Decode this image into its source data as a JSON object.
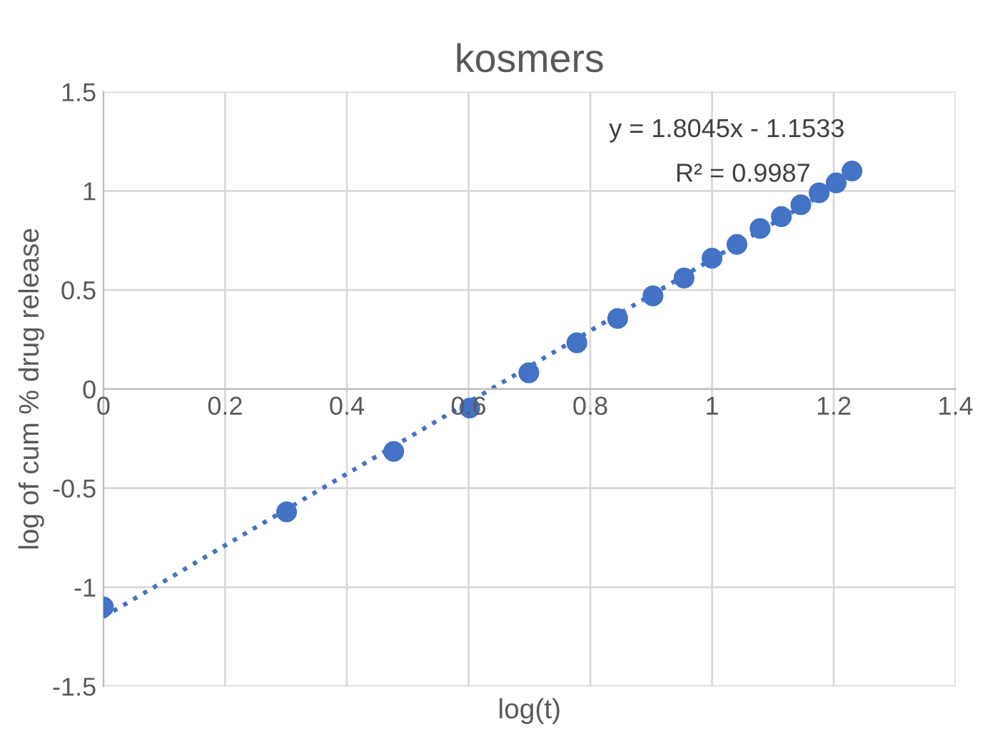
{
  "chart_data": {
    "type": "scatter",
    "title": "kosmers",
    "xlabel": "log(t)",
    "ylabel": "log of cum % drug release",
    "series": [
      {
        "color": "#4472c4",
        "marker": "circle",
        "x": [
          0,
          0.301,
          0.477,
          0.602,
          0.699,
          0.778,
          0.845,
          0.903,
          0.954,
          1,
          1.041,
          1.079,
          1.114,
          1.146,
          1.176,
          1.204,
          1.23
        ],
        "values": [
          -1.1,
          -0.62,
          -0.315,
          -0.096,
          0.082,
          0.233,
          0.356,
          0.47,
          0.56,
          0.66,
          0.73,
          0.81,
          0.87,
          0.93,
          0.99,
          1.04,
          1.1
        ]
      },
      {
        "type": "line",
        "color": "#4472c4",
        "line_style": "dotted",
        "x": [
          0,
          1.23
        ],
        "values": [
          -1.15,
          1.07
        ]
      }
    ],
    "xlim": [
      0,
      1.4
    ],
    "ylim": [
      -1.5,
      1.5
    ],
    "xticks": [
      0,
      0.2,
      0.4,
      0.6,
      0.8,
      1,
      1.2,
      1.4
    ],
    "yticks": [
      -1.5,
      -1,
      -0.5,
      0,
      0.5,
      1,
      1.5
    ],
    "grid": true,
    "annotations": [
      "y = 1.8045x - 1.1533",
      "R² = 0.9987"
    ]
  }
}
